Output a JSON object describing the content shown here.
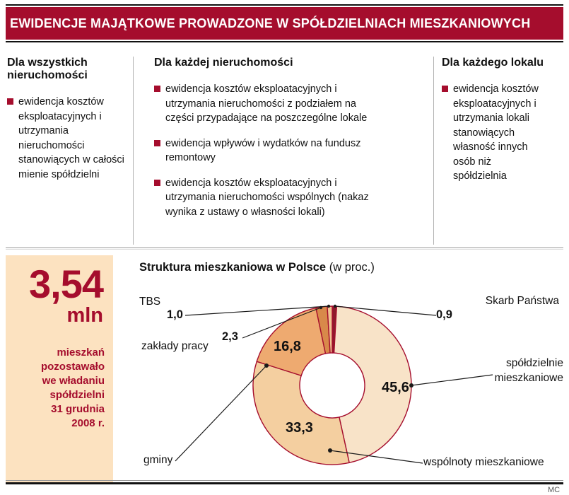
{
  "title_bar": {
    "text": "EWIDENCJE MAJĄTKOWE PROWADZONE W SPÓŁDZIELNIACH MIESZKANIOWYCH"
  },
  "columns": [
    {
      "header": "Dla wszystkich nieruchomości",
      "items": [
        "ewidencja kosztów eksploatacyjnych i utrzymania nieruchomości stanowiących w całości mienie spółdzielni"
      ]
    },
    {
      "header": "Dla każdej nieruchomości",
      "items": [
        "ewidencja kosztów eksploatacyjnych i utrzymania nieruchomości z podziałem na części przypadające na poszczególne lokale",
        "ewidencja wpływów i wydatków na fundusz remontowy",
        "ewidencja kosztów eksploatacyjnych i utrzymania nieruchomości wspólnych (nakaz wynika z ustawy o własności lokali)"
      ]
    },
    {
      "header": "Dla każdego lokalu",
      "items": [
        "ewidencja kosztów eksploatacyjnych i utrzymania lokali stanowiących własność innych osób niż spółdzielnia"
      ]
    }
  ],
  "stat_panel": {
    "value": "3,54",
    "unit": "mln",
    "caption": "mieszkań pozostawało we władaniu spółdzielni 31 grudnia 2008 r."
  },
  "chart": {
    "title": "Struktura mieszkaniowa w Polsce",
    "title_suffix": "(w proc.)"
  },
  "chart_data": {
    "type": "pie",
    "title": "Struktura mieszkaniowa w Polsce (w proc.)",
    "unit": "percent",
    "donut": true,
    "start_angle_deg": 0,
    "clockwise": true,
    "legend_position": "around",
    "segments": [
      {
        "id": "skarb-panstwa",
        "label": "Skarb Państwa",
        "value": 0.9,
        "display": "0,9",
        "color": "#8e1a2b"
      },
      {
        "id": "spoldzielnie-mieszkaniowe",
        "label": "spółdzielnie mieszkaniowe",
        "value": 45.6,
        "display": "45,6",
        "color": "#f8e3c8"
      },
      {
        "id": "wspolnoty-mieszkaniowe",
        "label": "wspólnoty mieszkaniowe",
        "value": 33.3,
        "display": "33,3",
        "color": "#f4cfa0"
      },
      {
        "id": "gminy",
        "label": "gminy",
        "value": 16.8,
        "display": "16,8",
        "color": "#eeaa70"
      },
      {
        "id": "zaklady-pracy",
        "label": "zakłady pracy",
        "value": 2.3,
        "display": "2,3",
        "color": "#d8894a"
      },
      {
        "id": "tbs",
        "label": "TBS",
        "value": 1.0,
        "display": "1,0",
        "color": "#f1c493"
      }
    ]
  },
  "credit": "MC",
  "colors": {
    "accent": "#a50d2d",
    "panel_bg": "#fce2c0",
    "outline": "#a50d2d"
  }
}
